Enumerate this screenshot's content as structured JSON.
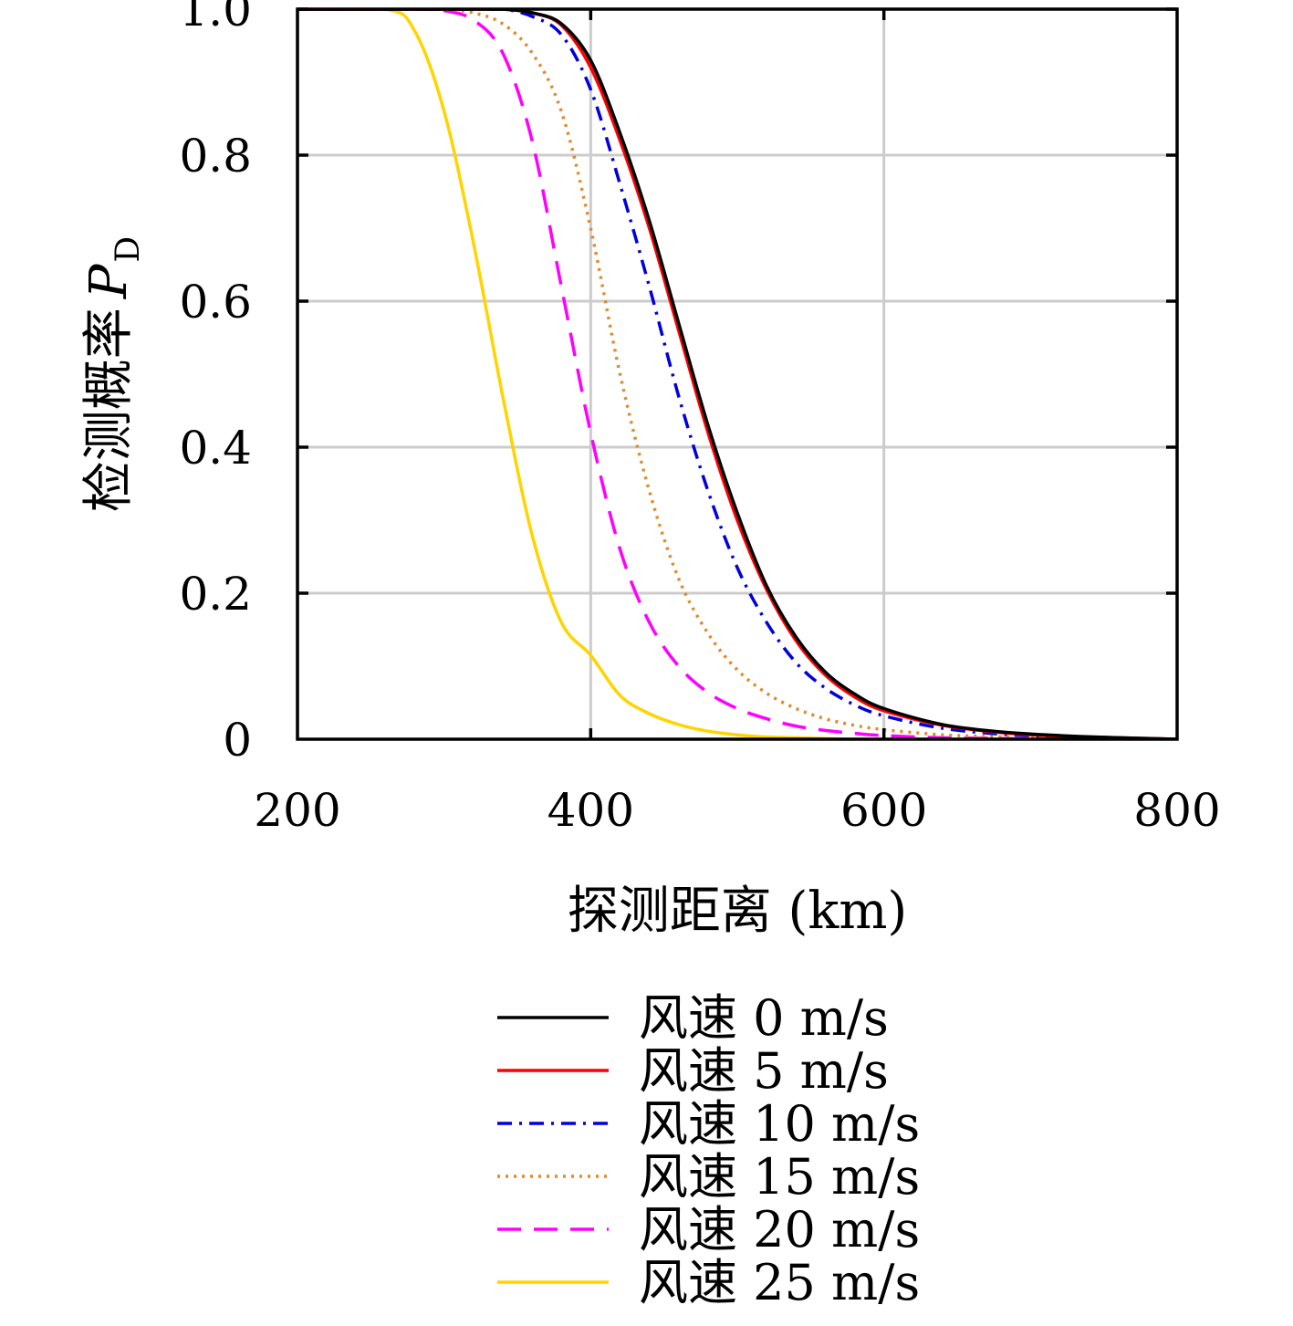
{
  "chart_data": {
    "type": "line",
    "xlabel": "探测距离 (km)",
    "ylabel_main": "检测概率",
    "ylabel_symbol": "P",
    "ylabel_subscript": "D",
    "xlim": [
      200,
      800
    ],
    "ylim": [
      0,
      1.0
    ],
    "grid": true,
    "legend_placement": "below",
    "x_ticks": [
      {
        "value": 200,
        "label": "200"
      },
      {
        "value": 400,
        "label": "400"
      },
      {
        "value": 600,
        "label": "600"
      },
      {
        "value": 800,
        "label": "800"
      }
    ],
    "y_ticks": [
      {
        "value": 0,
        "label": "0"
      },
      {
        "value": 0.2,
        "label": "0.2"
      },
      {
        "value": 0.4,
        "label": "0.4"
      },
      {
        "value": 0.6,
        "label": "0.6"
      },
      {
        "value": 0.8,
        "label": "0.8"
      },
      {
        "value": 1.0,
        "label": "1.0"
      }
    ],
    "x": [
      200,
      260,
      280,
      300,
      320,
      340,
      360,
      380,
      400,
      420,
      440,
      460,
      480,
      500,
      520,
      540,
      560,
      580,
      600,
      640,
      680,
      720,
      760,
      800
    ],
    "series": [
      {
        "name": "风速 0 m/s",
        "color": "#000000",
        "dash": "",
        "values": [
          1.0,
          1.0,
          1.0,
          1.0,
          1.0,
          1.0,
          0.995,
          0.98,
          0.93,
          0.83,
          0.71,
          0.57,
          0.43,
          0.31,
          0.21,
          0.14,
          0.092,
          0.062,
          0.042,
          0.02,
          0.01,
          0.005,
          0.002,
          0.0
        ]
      },
      {
        "name": "风速 5 m/s",
        "color": "#ff0000",
        "dash": "",
        "values": [
          1.0,
          1.0,
          1.0,
          1.0,
          1.0,
          1.0,
          0.995,
          0.978,
          0.92,
          0.82,
          0.7,
          0.56,
          0.42,
          0.3,
          0.205,
          0.135,
          0.088,
          0.058,
          0.039,
          0.019,
          0.009,
          0.004,
          0.002,
          0.0
        ]
      },
      {
        "name": "风速 10 m/s",
        "color": "#0000dd",
        "dash": "16,8,3,8",
        "values": [
          1.0,
          1.0,
          1.0,
          1.0,
          1.0,
          1.0,
          0.99,
          0.965,
          0.89,
          0.76,
          0.62,
          0.47,
          0.34,
          0.235,
          0.16,
          0.105,
          0.07,
          0.047,
          0.032,
          0.015,
          0.007,
          0.003,
          0.001,
          0.0
        ]
      },
      {
        "name": "风速 15 m/s",
        "color": "#e08a2c",
        "dash": "3,6",
        "values": [
          1.0,
          1.0,
          1.0,
          1.0,
          0.995,
          0.98,
          0.94,
          0.86,
          0.7,
          0.5,
          0.34,
          0.22,
          0.145,
          0.095,
          0.063,
          0.042,
          0.028,
          0.019,
          0.013,
          0.006,
          0.003,
          0.001,
          0.0,
          0.0
        ]
      },
      {
        "name": "风速 20 m/s",
        "color": "#ff00ff",
        "dash": "26,14",
        "values": [
          1.0,
          1.0,
          1.0,
          0.998,
          0.985,
          0.94,
          0.82,
          0.62,
          0.42,
          0.26,
          0.16,
          0.1,
          0.064,
          0.042,
          0.028,
          0.018,
          0.012,
          0.008,
          0.005,
          0.002,
          0.001,
          0.0,
          0.0,
          0.0
        ]
      },
      {
        "name": "风速 25 m/s",
        "color": "#ffd400",
        "dash": "",
        "values": [
          1.0,
          1.0,
          0.97,
          0.86,
          0.68,
          0.47,
          0.28,
          0.16,
          0.115,
          0.06,
          0.035,
          0.02,
          0.011,
          0.006,
          0.003,
          0.002,
          0.001,
          0.0,
          0.0,
          0.0,
          0.0,
          0.0,
          0.0,
          0.0
        ]
      }
    ]
  }
}
